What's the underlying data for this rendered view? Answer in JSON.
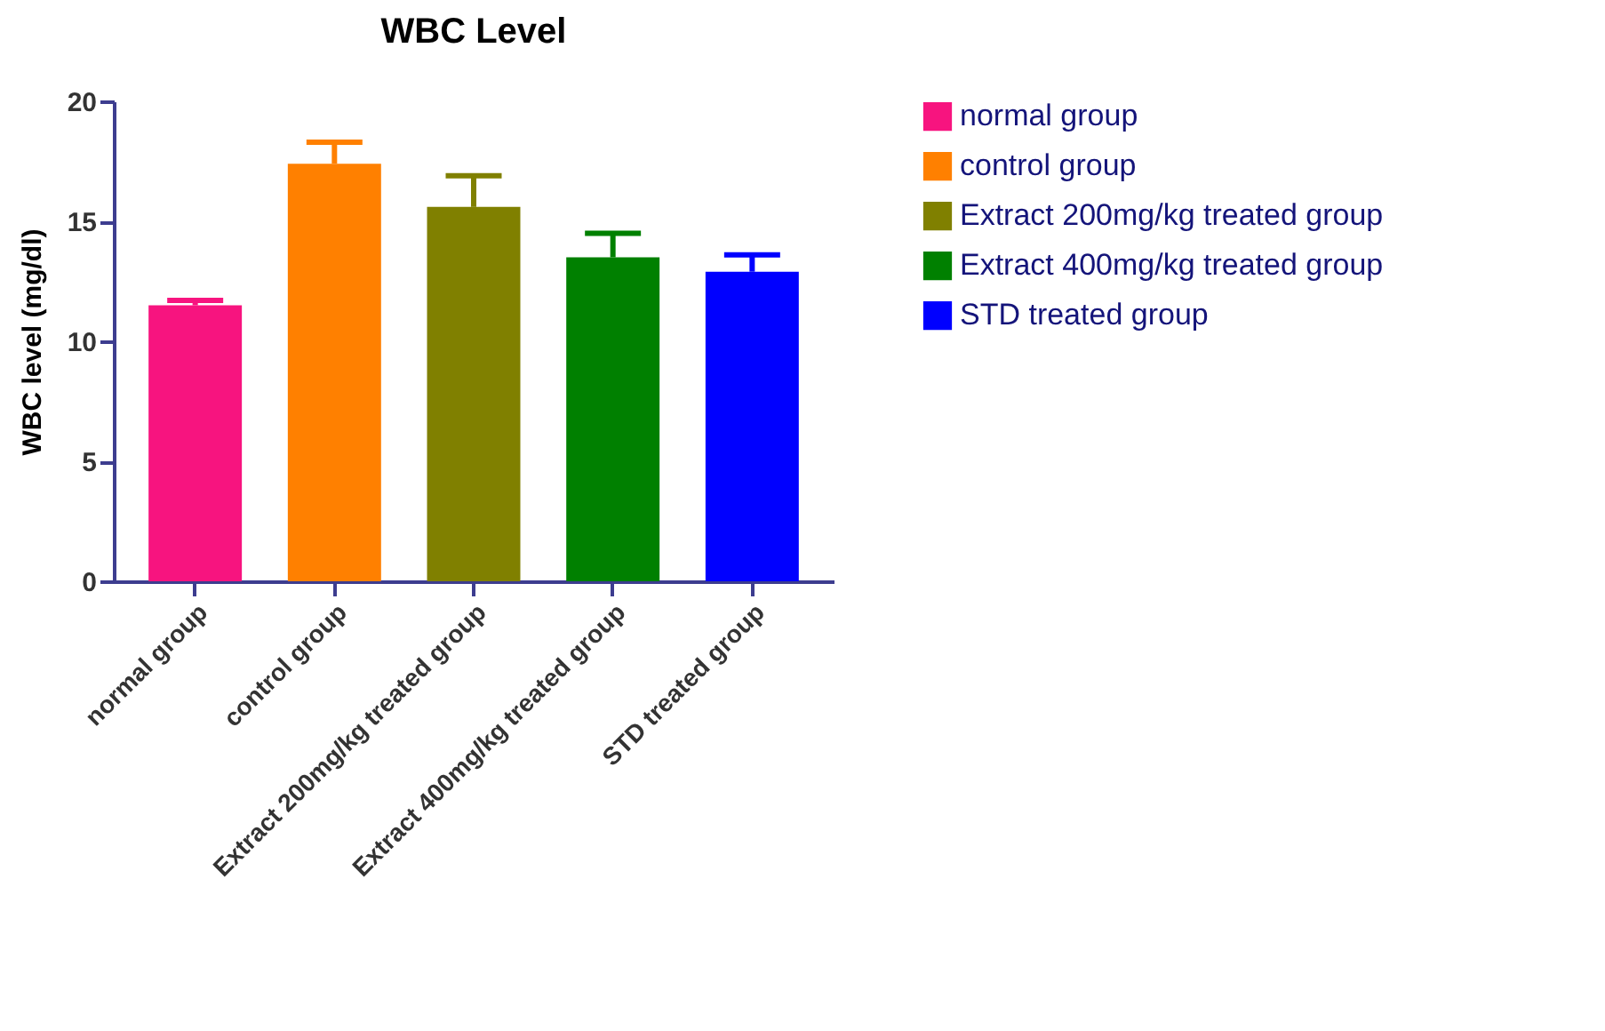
{
  "chart_data": {
    "type": "bar",
    "title": "WBC Level",
    "ylabel": "WBC level (mg/dl)",
    "categories": [
      "normal group",
      "control group",
      "Extract 200mg/kg treated group",
      "Extract 400mg/kg treated group",
      "STD treated group"
    ],
    "series": [
      {
        "name": "normal group",
        "color": "#f7147f",
        "values": [
          11.5,
          null,
          null,
          null,
          null
        ],
        "errors": [
          [
            11.5,
            11.7
          ],
          null,
          null,
          null,
          null
        ]
      },
      {
        "name": " control group",
        "color": "#ff8000",
        "values": [
          null,
          17.4,
          null,
          null,
          null
        ],
        "errors": [
          null,
          [
            17.4,
            18.3
          ],
          null,
          null,
          null
        ]
      },
      {
        "name": "Extract 200mg/kg treated group",
        "color": "#808000",
        "values": [
          null,
          null,
          15.6,
          null,
          null
        ],
        "errors": [
          null,
          null,
          [
            15.6,
            16.9
          ],
          null,
          null
        ]
      },
      {
        "name": "Extract 400mg/kg treated group",
        "color": "#008000",
        "values": [
          null,
          null,
          null,
          13.5,
          null
        ],
        "errors": [
          null,
          null,
          null,
          [
            13.5,
            14.5
          ],
          null
        ]
      },
      {
        "name": "STD treated group",
        "color": "#0000ff",
        "values": [
          null,
          null,
          null,
          null,
          12.9
        ],
        "errors": [
          null,
          null,
          null,
          null,
          [
            12.9,
            13.6
          ]
        ]
      }
    ],
    "ylim": [
      0,
      20
    ],
    "yticks": [
      0,
      5,
      10,
      15,
      20
    ],
    "grid": false,
    "legend": "right"
  }
}
